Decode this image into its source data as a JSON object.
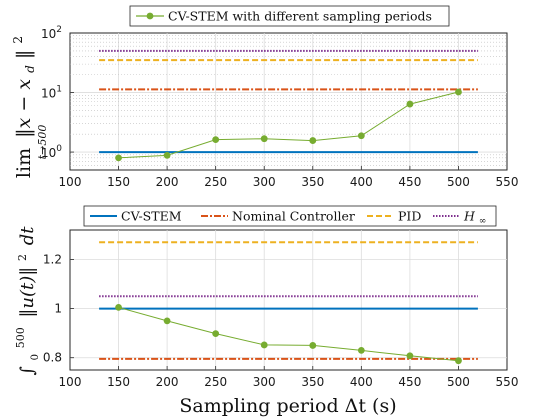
{
  "chart_data": [
    {
      "type": "line",
      "ylabel": "lim_{t→500} ‖x − x_d‖²",
      "ylabel_main": "lim",
      "ylabel_sub": "t→500",
      "ylabel_expr": "‖x − x",
      "ylabel_expr_sub": "d",
      "ylabel_expr_tail": "‖",
      "ylabel_expr_sup": "2",
      "xlim": [
        100,
        550
      ],
      "ylim": [
        0.5,
        100
      ],
      "yscale": "log",
      "grid": true,
      "xticks": [
        "100",
        "150",
        "200",
        "250",
        "300",
        "350",
        "400",
        "450",
        "500",
        "550"
      ],
      "yticks": [
        {
          "value": 1,
          "base": "10",
          "exp": "0"
        },
        {
          "value": 10,
          "base": "10",
          "exp": "1"
        },
        {
          "value": 100,
          "base": "10",
          "exp": "2"
        }
      ],
      "legend": {
        "placement": "top",
        "entries": [
          "CV-STEM with different sampling periods"
        ]
      },
      "series": [
        {
          "name": "CV-STEM with different sampling periods",
          "style": "line-marker",
          "color": "#77ac30",
          "x": [
            150,
            200,
            250,
            300,
            350,
            400,
            450,
            500
          ],
          "y": [
            0.8,
            0.88,
            1.62,
            1.68,
            1.56,
            1.88,
            6.4,
            10.2
          ]
        },
        {
          "style": "solid",
          "color": "#0072bd",
          "x": [
            130,
            520
          ],
          "y": [
            1.0,
            1.0
          ]
        },
        {
          "style": "dashdot",
          "color": "#d95319",
          "x": [
            130,
            520
          ],
          "y": [
            11.3,
            11.3
          ]
        },
        {
          "style": "dashed",
          "color": "#edb120",
          "x": [
            130,
            520
          ],
          "y": [
            35,
            35
          ]
        },
        {
          "style": "dotted",
          "color": "#7e2f8e",
          "x": [
            130,
            520
          ],
          "y": [
            50,
            50
          ]
        }
      ]
    },
    {
      "type": "line",
      "ylabel": "∫₀^500 ‖u(t)‖² dt",
      "ylabel_int": "∫",
      "ylabel_int_sub": "0",
      "ylabel_int_sup": "500",
      "ylabel_expr": "‖u(t)‖",
      "ylabel_expr_sup": "2",
      "ylabel_expr_tail": "dt",
      "xlabel": "Sampling period Δt (s)",
      "xlim": [
        100,
        550
      ],
      "ylim": [
        0.75,
        1.32
      ],
      "yscale": "linear",
      "grid": true,
      "xticks": [
        "100",
        "150",
        "200",
        "250",
        "300",
        "350",
        "400",
        "450",
        "500",
        "550"
      ],
      "yticks": [
        {
          "value": 0.8,
          "label": "0.8"
        },
        {
          "value": 1.0,
          "label": "1"
        },
        {
          "value": 1.2,
          "label": "1.2"
        }
      ],
      "legend": {
        "placement": "top",
        "entries": [
          "CV-STEM",
          "Nominal Controller",
          "PID",
          "H∞"
        ]
      },
      "legend_hinf_base": "H",
      "legend_hinf_sub": "∞",
      "series": [
        {
          "style": "line-marker",
          "color": "#77ac30",
          "x": [
            150,
            200,
            250,
            300,
            350,
            400,
            450,
            500
          ],
          "y": [
            1.005,
            0.95,
            0.898,
            0.852,
            0.85,
            0.83,
            0.808,
            0.788
          ]
        },
        {
          "name": "CV-STEM",
          "style": "solid",
          "color": "#0072bd",
          "x": [
            130,
            520
          ],
          "y": [
            1.0,
            1.0
          ]
        },
        {
          "name": "Nominal Controller",
          "style": "dashdot",
          "color": "#d95319",
          "x": [
            130,
            520
          ],
          "y": [
            0.795,
            0.795
          ]
        },
        {
          "name": "PID",
          "style": "dashed",
          "color": "#edb120",
          "x": [
            130,
            520
          ],
          "y": [
            1.27,
            1.27
          ]
        },
        {
          "name": "H∞",
          "style": "dotted",
          "color": "#7e2f8e",
          "x": [
            130,
            520
          ],
          "y": [
            1.05,
            1.05
          ]
        }
      ]
    }
  ]
}
